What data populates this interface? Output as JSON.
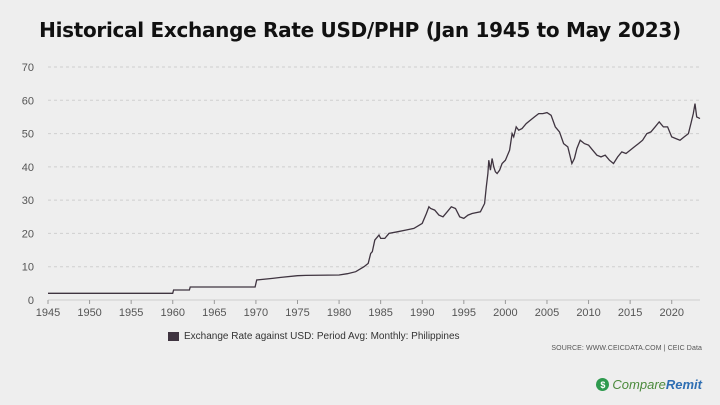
{
  "title": "Historical Exchange Rate USD/PHP (Jan 1945 to May 2023)",
  "legend_label": "Exchange Rate against USD: Period Avg: Monthly: Philippines",
  "source": "SOURCE: WWW.CEICDATA.COM | CEIC Data",
  "logo": {
    "part1": "Compare",
    "part2": "Remit",
    "mark": "$"
  },
  "colors": {
    "line": "#3f3440",
    "grid": "#cfcfcf",
    "background": "#eeeeee",
    "text": "#555555"
  },
  "chart_data": {
    "type": "line",
    "title": "Historical Exchange Rate USD/PHP (Jan 1945 to May 2023)",
    "xlim": [
      1945,
      2023.4
    ],
    "ylim": [
      0,
      70
    ],
    "x_ticks": [
      "1945",
      "1950",
      "1955",
      "1960",
      "1965",
      "1970",
      "1975",
      "1980",
      "1985",
      "1990",
      "1995",
      "2000",
      "2005",
      "2010",
      "2015",
      "2020"
    ],
    "y_ticks": [
      "0",
      "10",
      "20",
      "30",
      "40",
      "50",
      "60",
      "70"
    ],
    "grid": "horizontal",
    "legend_position": "bottom",
    "series": [
      {
        "name": "Exchange Rate against USD: Period Avg: Monthly: Philippines",
        "x": [
          1945,
          1960.0,
          1960.1,
          1961.5,
          1962.0,
          1962.1,
          1969.9,
          1970.1,
          1972.0,
          1973.0,
          1975.0,
          1976.0,
          1980.0,
          1981.0,
          1982.0,
          1983.0,
          1983.5,
          1983.8,
          1984.0,
          1984.3,
          1984.8,
          1985.0,
          1985.5,
          1986.0,
          1987.0,
          1988.0,
          1989.0,
          1990.0,
          1990.5,
          1990.8,
          1991.0,
          1991.5,
          1992.0,
          1992.5,
          1993.0,
          1993.5,
          1994.0,
          1994.5,
          1995.0,
          1995.5,
          1996.0,
          1997.0,
          1997.5,
          1997.7,
          1997.9,
          1998.0,
          1998.2,
          1998.4,
          1998.6,
          1998.8,
          1999.0,
          1999.3,
          1999.6,
          2000.0,
          2000.5,
          2000.8,
          2001.0,
          2001.3,
          2001.6,
          2002.0,
          2002.5,
          2003.0,
          2003.5,
          2004.0,
          2004.5,
          2005.0,
          2005.5,
          2006.0,
          2006.5,
          2007.0,
          2007.5,
          2008.0,
          2008.3,
          2008.6,
          2009.0,
          2009.5,
          2010.0,
          2010.5,
          2011.0,
          2011.5,
          2012.0,
          2012.5,
          2013.0,
          2013.5,
          2014.0,
          2014.5,
          2015.0,
          2015.5,
          2016.0,
          2016.5,
          2017.0,
          2017.5,
          2018.0,
          2018.5,
          2019.0,
          2019.5,
          2020.0,
          2020.5,
          2021.0,
          2021.5,
          2022.0,
          2022.3,
          2022.6,
          2022.8,
          2023.0,
          2023.4
        ],
        "values": [
          2.0,
          2.0,
          3.0,
          3.0,
          3.0,
          3.9,
          3.9,
          6.0,
          6.5,
          6.8,
          7.3,
          7.4,
          7.5,
          7.9,
          8.5,
          10.0,
          11.0,
          14.0,
          14.5,
          18.0,
          19.5,
          18.5,
          18.5,
          20.0,
          20.5,
          21.0,
          21.5,
          23.0,
          26.0,
          28.0,
          27.5,
          27.0,
          25.5,
          25.0,
          26.5,
          28.0,
          27.5,
          25.0,
          24.5,
          25.5,
          26.0,
          26.5,
          29.0,
          34.0,
          38.0,
          42.0,
          39.0,
          42.5,
          40.0,
          38.5,
          38.0,
          39.0,
          41.0,
          42.0,
          45.0,
          50.0,
          49.0,
          52.0,
          51.0,
          51.5,
          53.0,
          54.0,
          55.0,
          56.0,
          56.0,
          56.3,
          55.5,
          52.0,
          50.5,
          47.0,
          46.0,
          41.0,
          42.5,
          45.5,
          48.0,
          47.0,
          46.5,
          45.0,
          43.5,
          43.0,
          43.5,
          42.0,
          41.0,
          43.0,
          44.5,
          44.0,
          45.0,
          46.0,
          47.0,
          48.0,
          50.0,
          50.5,
          52.0,
          53.5,
          52.0,
          52.0,
          49.0,
          48.5,
          48.0,
          49.0,
          50.0,
          53.0,
          56.0,
          59.0,
          55.0,
          54.5
        ]
      }
    ]
  }
}
